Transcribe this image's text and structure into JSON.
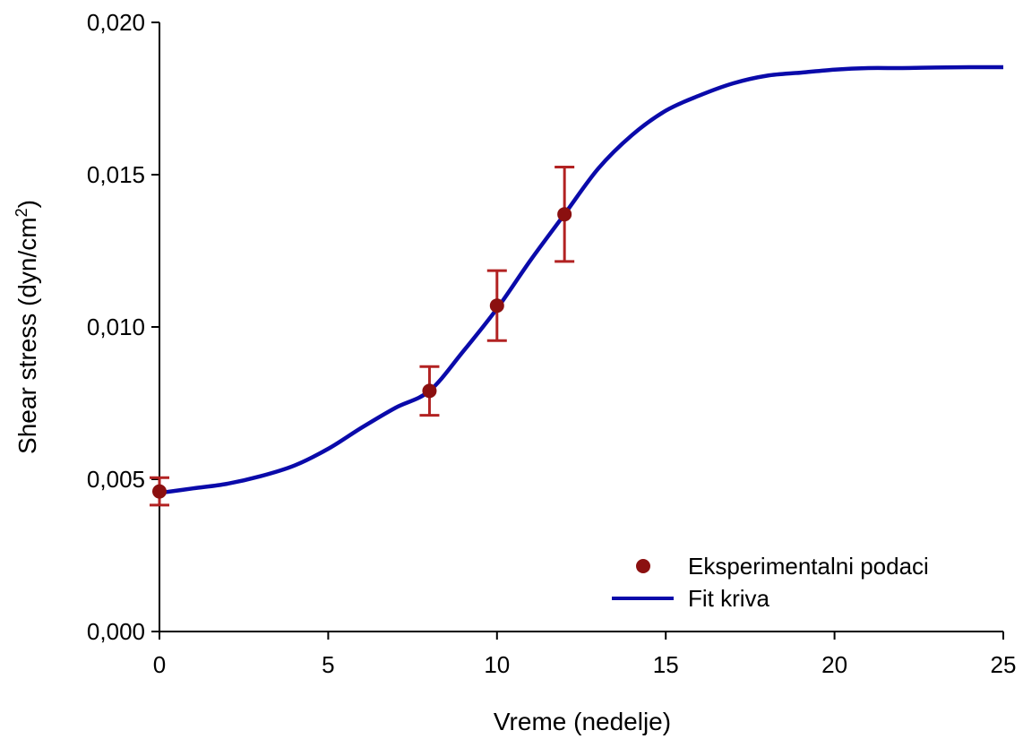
{
  "chart_data": {
    "type": "scatter",
    "title": "",
    "xlabel": "Vreme (nedelje)",
    "ylabel": "Shear stress (dyn/cm",
    "ylabel_superscript": "2",
    "ylabel_suffix": ")",
    "xlim": [
      0,
      25
    ],
    "ylim": [
      0.0,
      0.02
    ],
    "xticks": [
      0,
      5,
      10,
      15,
      20,
      25
    ],
    "xtick_labels": [
      "0",
      "5",
      "10",
      "15",
      "20",
      "25"
    ],
    "yticks": [
      0.0,
      0.005,
      0.01,
      0.015,
      0.02
    ],
    "ytick_labels": [
      "0,000",
      "0,005",
      "0,010",
      "0,015",
      "0,020"
    ],
    "grid": false,
    "legend_position": "bottom-right",
    "series": [
      {
        "name": "Eksperimentalni podaci",
        "kind": "points",
        "color": "#8B1010",
        "error_color": "#B22222",
        "x": [
          0,
          8,
          10,
          12
        ],
        "y": [
          0.0046,
          0.0079,
          0.0107,
          0.0137
        ],
        "yerr": [
          0.00045,
          0.0008,
          0.00115,
          0.00155
        ]
      },
      {
        "name": "Fit kriva",
        "kind": "line",
        "color": "#0A0AAA",
        "x": [
          0,
          1,
          2,
          3,
          4,
          5,
          6,
          7,
          8,
          9,
          10,
          11,
          12,
          13,
          14,
          15,
          16,
          17,
          18,
          19,
          20,
          21,
          22,
          23,
          24,
          25
        ],
        "y": [
          0.00455,
          0.0047,
          0.00485,
          0.0051,
          0.00545,
          0.006,
          0.0067,
          0.00735,
          0.0079,
          0.0092,
          0.0106,
          0.0122,
          0.0137,
          0.0152,
          0.0163,
          0.0171,
          0.0176,
          0.018,
          0.01825,
          0.01835,
          0.01845,
          0.0185,
          0.0185,
          0.01852,
          0.01853,
          0.01853
        ]
      }
    ]
  }
}
